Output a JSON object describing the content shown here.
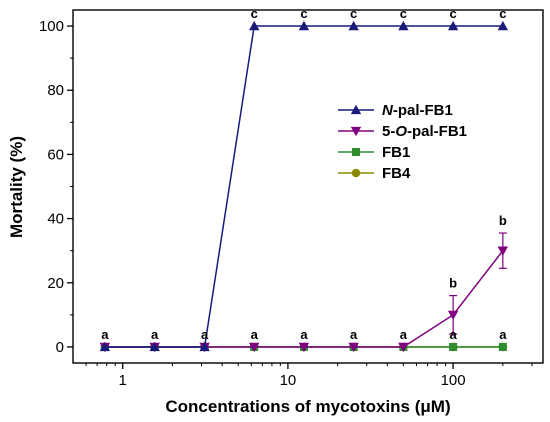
{
  "chart_data": {
    "type": "line",
    "xscale": "log",
    "xlabel": "Concentrations of mycotoxins (μM)",
    "ylabel": "Mortality (%)",
    "xlim": [
      0.5,
      350
    ],
    "ylim": [
      -5,
      105
    ],
    "x_ticks": [
      1,
      10,
      100
    ],
    "x_tick_labels": [
      "1",
      "10",
      "100"
    ],
    "y_ticks": [
      0,
      20,
      40,
      60,
      80,
      100
    ],
    "y_tick_labels": [
      "0",
      "20",
      "40",
      "60",
      "80",
      "100"
    ],
    "legend_placement": "center-right",
    "x": [
      0.78,
      1.56,
      3.13,
      6.25,
      12.5,
      25,
      50,
      100,
      200
    ],
    "series": [
      {
        "name": "N-pal-FB1",
        "name_parts": [
          "N",
          "-pal-FB1"
        ],
        "color": "#1a1a7a",
        "marker": "triangle-up",
        "values": [
          0,
          0,
          0,
          100,
          100,
          100,
          100,
          100,
          100
        ],
        "errors": [
          0,
          0,
          0,
          0,
          0,
          0,
          0,
          0,
          0
        ],
        "letters": [
          "a",
          "a",
          "a",
          "c",
          "c",
          "c",
          "c",
          "c",
          "c"
        ]
      },
      {
        "name": "5-O-pal-FB1",
        "name_parts": [
          "5-",
          "O",
          "-pal-FB1"
        ],
        "color": "#800080",
        "marker": "triangle-down",
        "values": [
          0,
          0,
          0,
          0,
          0,
          0,
          0,
          10,
          30
        ],
        "errors": [
          0,
          0,
          0,
          0,
          0,
          0,
          0,
          6,
          5.5
        ],
        "letters": [
          "",
          "",
          "",
          "",
          "",
          "",
          "",
          "b",
          "b"
        ]
      },
      {
        "name": "FB1",
        "color": "#2e8b2e",
        "marker": "square",
        "values": [
          0,
          0,
          0,
          0,
          0,
          0,
          0,
          0,
          0
        ],
        "errors": [
          0,
          0,
          0,
          0,
          0,
          0,
          0,
          0,
          0
        ],
        "letters": [
          "",
          "",
          "",
          "a",
          "a",
          "a",
          "a",
          "a",
          "a"
        ]
      },
      {
        "name": "FB4",
        "color": "#8a8a00",
        "marker": "circle",
        "values": [
          0,
          0,
          0,
          0,
          0,
          0,
          0,
          0,
          0
        ],
        "errors": [
          0,
          0,
          0,
          0,
          0,
          0,
          0,
          0,
          0
        ],
        "letters": [
          "",
          "",
          "",
          "",
          "",
          "",
          "",
          "",
          ""
        ]
      }
    ]
  }
}
